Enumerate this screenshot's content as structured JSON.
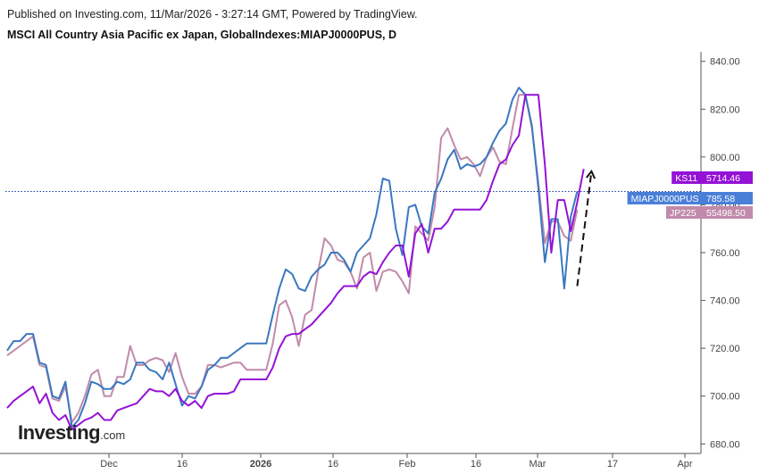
{
  "header": {
    "published_line": "Published on Investing.com, 11/Mar/2026 - 3:27:14 GMT, Powered by TradingView.",
    "symbol_line": "MSCI All Country Asia Pacific ex Japan, GlobalIndexes:MIAPJ0000PUS, D"
  },
  "logo": {
    "main": "Investing",
    "suffix": ".com"
  },
  "chart_data": {
    "type": "line",
    "x_ticks": [
      "Dec",
      "16",
      "2026",
      "16",
      "Feb",
      "16",
      "Mar",
      "17",
      "Apr"
    ],
    "x_ticks_bold": [
      "2026"
    ],
    "y_ticks": [
      "840.00",
      "820.00",
      "800.00",
      "780.00",
      "760.00",
      "740.00",
      "720.00",
      "700.00",
      "680.00"
    ],
    "ylim": [
      676,
      844
    ],
    "y_axis_position": "right",
    "grid": false,
    "current_price_line": 785.58,
    "series": [
      {
        "name": "MIAPJ0000PUS",
        "color": "#3a78c0",
        "label_color": "#4a7fd8",
        "last_label": "785.58",
        "values": [
          719,
          723,
          723,
          726,
          726,
          714,
          713,
          700,
          699,
          706,
          687,
          690,
          697,
          706,
          705,
          703,
          703,
          706,
          705,
          707,
          714,
          714,
          711,
          710,
          707,
          714,
          705,
          696,
          700,
          699,
          704,
          711,
          713,
          716,
          716,
          718,
          720,
          722,
          722,
          722,
          722,
          734,
          745,
          753,
          751,
          745,
          744,
          750,
          753,
          755,
          760,
          760,
          757,
          752,
          760,
          763,
          766,
          776,
          791,
          790,
          770,
          759,
          779,
          780,
          771,
          768,
          785,
          791,
          799,
          803,
          795,
          797,
          796,
          797,
          800,
          806,
          811,
          814,
          824,
          829,
          826,
          813,
          787,
          756,
          774,
          774,
          745,
          775,
          785.58
        ]
      },
      {
        "name": "KS11",
        "color": "#9412d6",
        "label_color": "#9412d6",
        "last_label": "5714.46",
        "values": [
          695,
          698,
          700,
          702,
          704,
          697,
          701,
          693,
          690,
          692,
          686,
          688,
          690,
          691,
          693,
          690,
          690,
          694,
          695,
          696,
          697,
          700,
          703,
          702,
          702,
          700,
          703,
          698,
          696,
          698,
          695,
          700,
          701,
          701,
          701,
          702,
          707,
          707,
          707,
          707,
          707,
          712,
          720,
          725,
          726,
          726,
          728,
          730,
          733,
          736,
          739,
          743,
          746,
          746,
          746,
          750,
          752,
          751,
          756,
          760,
          763,
          763,
          750,
          768,
          772,
          760,
          770,
          770,
          773,
          778,
          778,
          778,
          778,
          778,
          782,
          790,
          797,
          799,
          805,
          809,
          826,
          826,
          826,
          797,
          760,
          782,
          782,
          769,
          781,
          795
        ]
      },
      {
        "name": "JP225",
        "color": "#c08aaa",
        "label_color": "#c08aaa",
        "last_label": "55498.50",
        "values": [
          717,
          719,
          721,
          723,
          725,
          713,
          712,
          699,
          698,
          704,
          689,
          693,
          700,
          709,
          711,
          700,
          700,
          708,
          708,
          721,
          713,
          713,
          715,
          716,
          715,
          710,
          718,
          708,
          701,
          701,
          704,
          713,
          713,
          712,
          713,
          714,
          714,
          711,
          711,
          711,
          711,
          722,
          738,
          740,
          733,
          721,
          734,
          736,
          752,
          766,
          763,
          757,
          756,
          752,
          745,
          758,
          760,
          744,
          752,
          753,
          752,
          748,
          743,
          771,
          768,
          765,
          779,
          808,
          812,
          805,
          799,
          800,
          797,
          792,
          800,
          804,
          798,
          797,
          812,
          826,
          826,
          812,
          789,
          764,
          773,
          773,
          767,
          765,
          778
        ]
      }
    ],
    "annotations": [
      {
        "type": "dashed-arrow",
        "color": "#111111",
        "from": [
          88,
          746
        ],
        "to": [
          90.2,
          794
        ]
      }
    ]
  }
}
